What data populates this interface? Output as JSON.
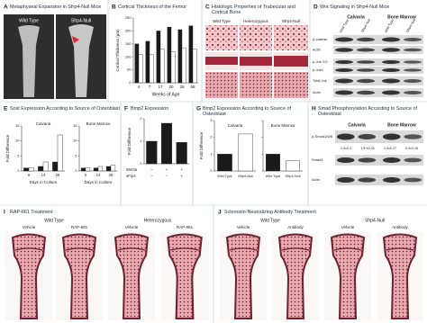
{
  "panels": [
    {
      "letter": "A",
      "title": "Metaphyseal Expansion in Sfrp4-Null Mice",
      "labels": [
        "Wild Type",
        "Sfrp4-Null"
      ]
    },
    {
      "letter": "B",
      "title": "Cortical Thickness of the Femur",
      "type": "bar",
      "y_label": "Cortical Thickness (µm)",
      "x_label": "Weeks of Age",
      "categories": [
        "4",
        "7",
        "17",
        "20",
        "26",
        "68"
      ],
      "series": [
        {
          "color": "#1a1a1a",
          "values": [
            150,
            160,
            200,
            215,
            205,
            220
          ]
        },
        {
          "color": "#ffffff",
          "values": [
            110,
            110,
            130,
            120,
            135,
            130
          ]
        }
      ],
      "ylim": [
        0,
        250
      ],
      "yticks": [
        0,
        50,
        100,
        150,
        200,
        250
      ]
    },
    {
      "letter": "C",
      "title": "Histologic Properties of Trabecular and Cortical Bone",
      "columns": [
        "Wild Type",
        "Heterozygous",
        "Sfrp4-Null"
      ]
    },
    {
      "letter": "D",
      "title": "Wnt Signaling in Sfrp4-Null Mice",
      "groups": [
        "Calvaria",
        "Bone Marrow"
      ],
      "columns": [
        "Wild Type",
        "Sfrp4-Null",
        "Wild Type",
        "Sfrp4-Null"
      ],
      "rows": [
        "β-catenin",
        "Actin",
        "p-Jnk 2/3",
        "p-Jnk1",
        "Total Jnk",
        "Actin"
      ]
    },
    {
      "letter": "E",
      "title": "Sost Expression According to Source of Osteoblast",
      "type": "bar",
      "y_label": "Fold Difference",
      "ylim": [
        0,
        15
      ],
      "yticks": [
        0,
        5,
        10,
        15
      ],
      "groups": [
        {
          "name": "Calvaria",
          "x_label": "Days in Culture",
          "categories": [
            "0",
            "14",
            "28"
          ],
          "series": [
            {
              "color": "#1a1a1a",
              "values": [
                1,
                1.5,
                3
              ]
            },
            {
              "color": "#ffffff",
              "values": [
                1,
                3,
                12
              ]
            }
          ]
        },
        {
          "name": "Bone Marrow",
          "x_label": "Days in Culture",
          "categories": [
            "0",
            "14",
            "28"
          ],
          "series": [
            {
              "color": "#1a1a1a",
              "values": [
                1,
                1,
                1.5
              ]
            },
            {
              "color": "#ffffff",
              "values": [
                1,
                1.5,
                2
              ]
            }
          ]
        }
      ]
    },
    {
      "letter": "F",
      "title": "Bmp2 Expression",
      "type": "bar",
      "y_label": "Fold Difference",
      "values": [
        1.0,
        1.8,
        0.95
      ],
      "color": "#1a1a1a",
      "ylim": [
        0,
        2
      ],
      "yticks": [
        0,
        1,
        2
      ],
      "conditions": [
        {
          "name": "Wnt3a",
          "signs": [
            "–",
            "+",
            "+"
          ]
        },
        {
          "name": "sFrp4",
          "signs": [
            "–",
            "–",
            "+"
          ]
        }
      ]
    },
    {
      "letter": "G",
      "title": "Bmp2 Expression According to Source of Osteoblast",
      "type": "bar",
      "y_label": "Fold Difference",
      "ylim": [
        0,
        3
      ],
      "yticks": [
        0,
        1,
        2,
        3
      ],
      "groups": [
        {
          "name": "Calvaria",
          "categories": [
            "Wild Type",
            "Sfrp4-Null"
          ],
          "values": [
            1.0,
            2.2
          ],
          "colors": [
            "#1a1a1a",
            "#ffffff"
          ]
        },
        {
          "name": "Bone Marrow",
          "categories": [
            "Wild Type",
            "Sfrp4-Null"
          ],
          "values": [
            1.0,
            0.6
          ],
          "colors": [
            "#1a1a1a",
            "#ffffff"
          ]
        }
      ]
    },
    {
      "letter": "H",
      "title": "Smad Phosphorylation According to Source of Osteoblast",
      "groups": [
        "Calvaria",
        "Bone Marrow"
      ],
      "rows": [
        "p-Smad1/5/8",
        "Smad1",
        "Actin"
      ],
      "quantification": [
        "1.0±0.3",
        "1.5*±0.25",
        "1.0±0.27",
        "0.4±0.18"
      ]
    },
    {
      "letter": "I",
      "title": "RAP-661 Treatment",
      "groups": [
        "Wild Type",
        "Heterozygous"
      ],
      "columns": [
        "Vehicle",
        "RAP-661",
        "Vehicle",
        "RAP-661"
      ]
    },
    {
      "letter": "J",
      "title": "Sclerostin-Neutralizing Antibody Treatment",
      "groups": [
        "Wild Type",
        "Sfrp4-Null"
      ],
      "columns": [
        "Vehicle",
        "Antibody",
        "Vehicle",
        "Antibody"
      ]
    }
  ]
}
